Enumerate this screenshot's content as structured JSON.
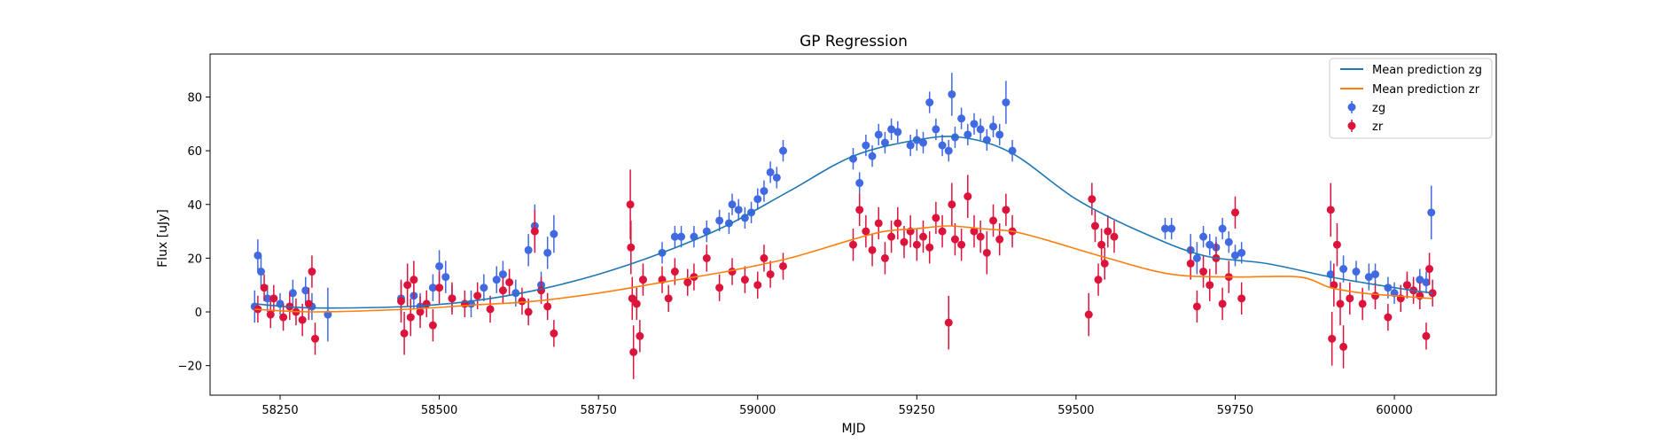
{
  "chart_data": {
    "type": "scatter",
    "title": "GP Regression",
    "xlabel": "MJD",
    "ylabel": "Flux [uJy]",
    "xlim": [
      58140,
      60160
    ],
    "ylim": [
      -31,
      96
    ],
    "xticks": [
      58250,
      58500,
      58750,
      59000,
      59250,
      59500,
      59750,
      60000
    ],
    "yticks": [
      -20,
      0,
      20,
      40,
      60,
      80
    ],
    "grid": false,
    "legend_position": "top-right",
    "legend": [
      {
        "label": "Mean prediction zg",
        "kind": "line",
        "color": "#1f77b4"
      },
      {
        "label": "Mean prediction zr",
        "kind": "line",
        "color": "#ff7f0e"
      },
      {
        "label": "zg",
        "kind": "errorbar",
        "color": "#4169e1"
      },
      {
        "label": "zr",
        "kind": "errorbar",
        "color": "#dc143c"
      }
    ],
    "lines": [
      {
        "name": "Mean prediction zg",
        "color": "#1f77b4",
        "x": [
          58210,
          58300,
          58450,
          58550,
          58650,
          58750,
          58850,
          58950,
          59050,
          59150,
          59250,
          59320,
          59400,
          59500,
          59600,
          59700,
          59800,
          59900,
          60000,
          60060
        ],
        "y": [
          3,
          1.5,
          2,
          4,
          8,
          14,
          22,
          32,
          45,
          58,
          64,
          65,
          59,
          42,
          30,
          21,
          18,
          13,
          9,
          7
        ]
      },
      {
        "name": "Mean prediction zr",
        "color": "#ff7f0e",
        "x": [
          58210,
          58300,
          58450,
          58550,
          58650,
          58750,
          58850,
          58950,
          59050,
          59150,
          59200,
          59250,
          59300,
          59350,
          59400,
          59450,
          59550,
          59650,
          59750,
          59850,
          59900,
          59950,
          60000,
          60060
        ],
        "y": [
          1,
          0,
          1,
          2.5,
          4,
          7,
          11,
          15,
          20,
          27,
          30,
          31,
          32,
          31,
          30,
          27,
          20,
          14,
          13,
          13,
          9,
          7,
          6,
          5
        ]
      }
    ],
    "series": [
      {
        "name": "zg",
        "color": "#4169e1",
        "points": [
          [
            58210,
            2,
            6
          ],
          [
            58215,
            21,
            6
          ],
          [
            58220,
            15,
            6
          ],
          [
            58230,
            5,
            5
          ],
          [
            58250,
            3,
            4
          ],
          [
            58270,
            7,
            5
          ],
          [
            58290,
            8,
            5
          ],
          [
            58300,
            2,
            5
          ],
          [
            58325,
            -1,
            10
          ],
          [
            58440,
            5,
            6
          ],
          [
            58460,
            6,
            5
          ],
          [
            58470,
            2,
            5
          ],
          [
            58490,
            9,
            5
          ],
          [
            58500,
            17,
            6
          ],
          [
            58510,
            13,
            6
          ],
          [
            58520,
            5,
            5
          ],
          [
            58550,
            3,
            5
          ],
          [
            58570,
            9,
            5
          ],
          [
            58590,
            12,
            5
          ],
          [
            58600,
            14,
            5
          ],
          [
            58620,
            7,
            5
          ],
          [
            58640,
            23,
            6
          ],
          [
            58650,
            32,
            8
          ],
          [
            58660,
            10,
            5
          ],
          [
            58670,
            22,
            6
          ],
          [
            58680,
            29,
            7
          ],
          [
            58820,
            12,
            4
          ],
          [
            58850,
            22,
            4
          ],
          [
            58870,
            28,
            4
          ],
          [
            58880,
            28,
            4
          ],
          [
            58900,
            28,
            4
          ],
          [
            58920,
            30,
            4
          ],
          [
            58940,
            34,
            4
          ],
          [
            58955,
            33,
            4
          ],
          [
            58960,
            40,
            4
          ],
          [
            58970,
            38,
            4
          ],
          [
            58980,
            35,
            4
          ],
          [
            58990,
            37,
            4
          ],
          [
            59000,
            42,
            4
          ],
          [
            59010,
            45,
            4
          ],
          [
            59020,
            52,
            4
          ],
          [
            59030,
            50,
            4
          ],
          [
            59040,
            60,
            4
          ],
          [
            59150,
            57,
            4
          ],
          [
            59160,
            48,
            4
          ],
          [
            59170,
            62,
            4
          ],
          [
            59180,
            58,
            4
          ],
          [
            59190,
            66,
            4
          ],
          [
            59200,
            63,
            4
          ],
          [
            59210,
            68,
            4
          ],
          [
            59220,
            67,
            4
          ],
          [
            59240,
            62,
            4
          ],
          [
            59250,
            64,
            4
          ],
          [
            59260,
            63,
            4
          ],
          [
            59270,
            78,
            4
          ],
          [
            59280,
            68,
            4
          ],
          [
            59290,
            62,
            4
          ],
          [
            59300,
            60,
            4
          ],
          [
            59305,
            81,
            8
          ],
          [
            59310,
            65,
            4
          ],
          [
            59320,
            72,
            4
          ],
          [
            59330,
            66,
            4
          ],
          [
            59340,
            70,
            4
          ],
          [
            59350,
            68,
            4
          ],
          [
            59360,
            64,
            4
          ],
          [
            59370,
            69,
            4
          ],
          [
            59380,
            66,
            4
          ],
          [
            59390,
            78,
            8
          ],
          [
            59400,
            60,
            4
          ],
          [
            59640,
            31,
            4
          ],
          [
            59650,
            31,
            4
          ],
          [
            59680,
            23,
            6
          ],
          [
            59690,
            20,
            6
          ],
          [
            59700,
            28,
            4
          ],
          [
            59710,
            25,
            4
          ],
          [
            59720,
            24,
            4
          ],
          [
            59730,
            31,
            4
          ],
          [
            59740,
            26,
            4
          ],
          [
            59750,
            21,
            4
          ],
          [
            59760,
            22,
            4
          ],
          [
            59900,
            14,
            5
          ],
          [
            59920,
            16,
            5
          ],
          [
            59940,
            15,
            4
          ],
          [
            59960,
            13,
            5
          ],
          [
            59970,
            14,
            4
          ],
          [
            59990,
            9,
            4
          ],
          [
            60000,
            7,
            4
          ],
          [
            60020,
            10,
            4
          ],
          [
            60030,
            8,
            4
          ],
          [
            60040,
            12,
            4
          ],
          [
            60050,
            11,
            4
          ],
          [
            60058,
            37,
            10
          ]
        ]
      },
      {
        "name": "zr",
        "color": "#dc143c",
        "points": [
          [
            58215,
            1,
            5
          ],
          [
            58225,
            9,
            5
          ],
          [
            58235,
            -1,
            5
          ],
          [
            58240,
            5,
            5
          ],
          [
            58255,
            -2,
            5
          ],
          [
            58265,
            2,
            5
          ],
          [
            58275,
            0,
            5
          ],
          [
            58285,
            -3,
            6
          ],
          [
            58295,
            3,
            6
          ],
          [
            58300,
            15,
            6
          ],
          [
            58305,
            -10,
            6
          ],
          [
            58440,
            4,
            8
          ],
          [
            58445,
            -8,
            8
          ],
          [
            58450,
            10,
            8
          ],
          [
            58455,
            -2,
            7
          ],
          [
            58460,
            12,
            7
          ],
          [
            58470,
            0,
            6
          ],
          [
            58480,
            3,
            5
          ],
          [
            58490,
            -5,
            6
          ],
          [
            58500,
            9,
            6
          ],
          [
            58520,
            5,
            6
          ],
          [
            58540,
            3,
            5
          ],
          [
            58560,
            6,
            5
          ],
          [
            58580,
            1,
            5
          ],
          [
            58600,
            8,
            5
          ],
          [
            58610,
            11,
            5
          ],
          [
            58630,
            4,
            5
          ],
          [
            58640,
            0,
            5
          ],
          [
            58650,
            30,
            8
          ],
          [
            58660,
            8,
            5
          ],
          [
            58670,
            2,
            5
          ],
          [
            58680,
            -8,
            5
          ],
          [
            58800,
            40,
            13
          ],
          [
            58801,
            24,
            10
          ],
          [
            58803,
            5,
            8
          ],
          [
            58805,
            -15,
            10
          ],
          [
            58810,
            3,
            6
          ],
          [
            58815,
            -9,
            6
          ],
          [
            58820,
            12,
            6
          ],
          [
            58850,
            12,
            5
          ],
          [
            58860,
            5,
            5
          ],
          [
            58870,
            15,
            5
          ],
          [
            58890,
            11,
            5
          ],
          [
            58900,
            13,
            5
          ],
          [
            58920,
            20,
            5
          ],
          [
            58940,
            9,
            5
          ],
          [
            58960,
            15,
            5
          ],
          [
            58980,
            12,
            5
          ],
          [
            59000,
            10,
            5
          ],
          [
            59010,
            20,
            5
          ],
          [
            59020,
            14,
            5
          ],
          [
            59040,
            17,
            5
          ],
          [
            59150,
            25,
            6
          ],
          [
            59160,
            38,
            6
          ],
          [
            59170,
            30,
            6
          ],
          [
            59180,
            23,
            6
          ],
          [
            59190,
            33,
            6
          ],
          [
            59200,
            20,
            6
          ],
          [
            59210,
            28,
            6
          ],
          [
            59220,
            33,
            6
          ],
          [
            59230,
            26,
            6
          ],
          [
            59240,
            30,
            6
          ],
          [
            59250,
            25,
            6
          ],
          [
            59260,
            28,
            6
          ],
          [
            59270,
            24,
            6
          ],
          [
            59280,
            35,
            6
          ],
          [
            59290,
            30,
            6
          ],
          [
            59300,
            -4,
            10
          ],
          [
            59305,
            40,
            8
          ],
          [
            59310,
            27,
            6
          ],
          [
            59320,
            25,
            6
          ],
          [
            59330,
            43,
            8
          ],
          [
            59340,
            30,
            6
          ],
          [
            59350,
            28,
            6
          ],
          [
            59360,
            22,
            8
          ],
          [
            59370,
            34,
            6
          ],
          [
            59380,
            27,
            6
          ],
          [
            59390,
            38,
            6
          ],
          [
            59400,
            30,
            6
          ],
          [
            59520,
            -1,
            8
          ],
          [
            59525,
            42,
            6
          ],
          [
            59530,
            32,
            6
          ],
          [
            59535,
            12,
            6
          ],
          [
            59540,
            25,
            6
          ],
          [
            59545,
            18,
            6
          ],
          [
            59550,
            30,
            6
          ],
          [
            59560,
            28,
            6
          ],
          [
            59680,
            18,
            6
          ],
          [
            59690,
            2,
            6
          ],
          [
            59700,
            15,
            6
          ],
          [
            59710,
            10,
            6
          ],
          [
            59720,
            20,
            6
          ],
          [
            59730,
            3,
            6
          ],
          [
            59740,
            13,
            6
          ],
          [
            59750,
            37,
            6
          ],
          [
            59760,
            5,
            6
          ],
          [
            59900,
            38,
            10
          ],
          [
            59902,
            -10,
            10
          ],
          [
            59905,
            10,
            8
          ],
          [
            59910,
            25,
            8
          ],
          [
            59915,
            3,
            8
          ],
          [
            59920,
            -13,
            8
          ],
          [
            59930,
            5,
            6
          ],
          [
            59950,
            3,
            6
          ],
          [
            59970,
            6,
            5
          ],
          [
            59990,
            -2,
            5
          ],
          [
            60010,
            5,
            5
          ],
          [
            60020,
            10,
            5
          ],
          [
            60030,
            8,
            5
          ],
          [
            60040,
            6,
            5
          ],
          [
            60050,
            -9,
            5
          ],
          [
            60055,
            16,
            6
          ],
          [
            60060,
            7,
            5
          ]
        ]
      }
    ]
  }
}
